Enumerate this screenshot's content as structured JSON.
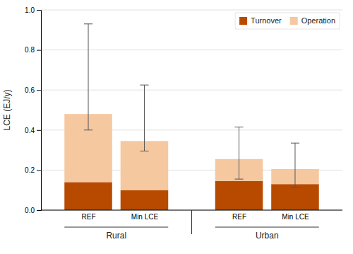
{
  "chart_data": {
    "type": "bar",
    "stacked": true,
    "categories": [
      "REF",
      "Min LCE",
      "REF",
      "Min LCE"
    ],
    "groups": [
      "Rural",
      "Urban"
    ],
    "series": [
      {
        "name": "Turnover",
        "color": "#B84A00",
        "values": [
          0.14,
          0.1,
          0.145,
          0.13
        ]
      },
      {
        "name": "Operation",
        "color": "#F5C8A0",
        "values": [
          0.34,
          0.245,
          0.11,
          0.075
        ]
      }
    ],
    "whisker_low": [
      0.4,
      0.295,
      0.155,
      0.115
    ],
    "whisker_high": [
      0.93,
      0.625,
      0.415,
      0.335
    ],
    "ylabel": "LCE (EJ/y)",
    "ylim": [
      0,
      1.0
    ],
    "yticks": [
      {
        "value": 0,
        "label": "0.0"
      },
      0.2,
      0.4,
      0.6,
      0.8,
      {
        "value": 1,
        "label": "1.0"
      }
    ],
    "grid": true,
    "legend": "top-right"
  }
}
